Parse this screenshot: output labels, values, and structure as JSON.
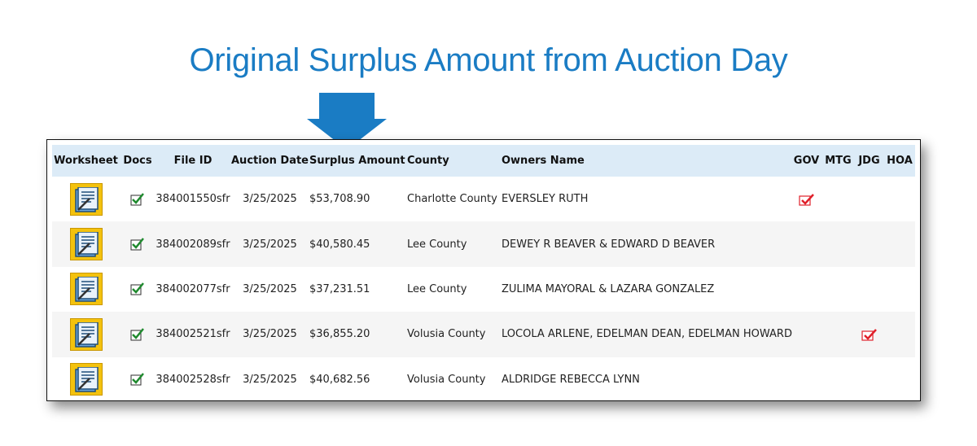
{
  "caption": {
    "text": "Original Surplus Amount from Auction Day",
    "color": "#1a7cc4",
    "arrow_color": "#1a7cc4"
  },
  "table": {
    "columns": [
      "Worksheet",
      "Docs",
      "File ID",
      "Auction Date",
      "Surplus Amount",
      "County",
      "Owners Name",
      "GOV",
      "MTG",
      "JDG",
      "HOA"
    ],
    "rows": [
      {
        "file_id": "384001550sfr",
        "auction_date": "3/25/2025",
        "surplus_amount": "$53,708.90",
        "county": "Charlotte County",
        "owners_name": "EVERSLEY RUTH",
        "gov": true,
        "mtg": false,
        "jdg": false,
        "hoa": false
      },
      {
        "file_id": "384002089sfr",
        "auction_date": "3/25/2025",
        "surplus_amount": "$40,580.45",
        "county": "Lee County",
        "owners_name": "DEWEY R BEAVER & EDWARD D BEAVER",
        "gov": false,
        "mtg": false,
        "jdg": false,
        "hoa": false
      },
      {
        "file_id": "384002077sfr",
        "auction_date": "3/25/2025",
        "surplus_amount": "$37,231.51",
        "county": "Lee County",
        "owners_name": "ZULIMA MAYORAL & LAZARA GONZALEZ",
        "gov": false,
        "mtg": false,
        "jdg": false,
        "hoa": false
      },
      {
        "file_id": "384002521sfr",
        "auction_date": "3/25/2025",
        "surplus_amount": "$36,855.20",
        "county": "Volusia County",
        "owners_name": "LOCOLA ARLENE, EDELMAN DEAN, EDELMAN HOWARD",
        "gov": false,
        "mtg": false,
        "jdg": true,
        "hoa": false
      },
      {
        "file_id": "384002528sfr",
        "auction_date": "3/25/2025",
        "surplus_amount": "$40,682.56",
        "county": "Volusia County",
        "owners_name": "ALDRIDGE REBECCA LYNN",
        "gov": false,
        "mtg": false,
        "jdg": false,
        "hoa": false
      }
    ],
    "icons": {
      "worksheet": "worksheet-icon",
      "docs": "green-check-icon",
      "flag": "red-check-flag-icon"
    },
    "colors": {
      "header_bg": "#dcebf7",
      "alt_row_bg": "#f5f5f5",
      "worksheet_bg": "#f4c20d",
      "docs_check": "#1f8a2e",
      "flag_red": "#e0202a"
    }
  }
}
